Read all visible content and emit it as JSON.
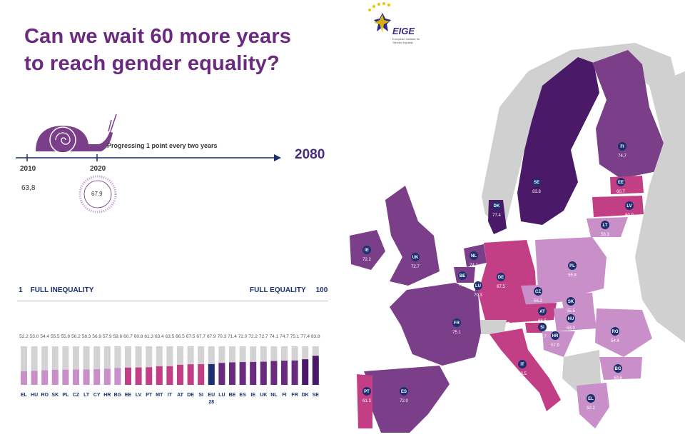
{
  "header": {
    "title_line1": "Can we wait 60 more years",
    "title_line2": "to reach gender equality?",
    "logo_text": "EIGE",
    "logo_subtext": "European Institute for Gender Equality"
  },
  "timeline": {
    "start_year": "2010",
    "start_value": "63,8",
    "current_year": "2020",
    "current_value": "67.9",
    "progress_text": "Progressing 1 point every two years",
    "target_year": "2080"
  },
  "scale": {
    "min_value": "1",
    "min_label": "FULL INEQUALITY",
    "max_label": "FULL EQUALITY",
    "max_value": "100"
  },
  "colors": {
    "title": "#6a2a7e",
    "eu_bar": "#1c2f6e",
    "bar_track": "#d3d3d3",
    "low": "#c98fc9",
    "mid_low": "#b061b6",
    "mid": "#c23f85",
    "high": "#6a2a7e",
    "top": "#4a1a68"
  },
  "chart_data": {
    "type": "bar",
    "categories": [
      "EL",
      "HU",
      "RO",
      "SK",
      "PL",
      "CZ",
      "LT",
      "CY",
      "HR",
      "BG",
      "EE",
      "LV",
      "PT",
      "MT",
      "IT",
      "AT",
      "DE",
      "SI",
      "EU 28",
      "LU",
      "BE",
      "ES",
      "IE",
      "UK",
      "NL",
      "FI",
      "FR",
      "DK",
      "SE"
    ],
    "values": [
      52.2,
      53.0,
      54.4,
      55.5,
      55.8,
      56.2,
      56.3,
      56.9,
      57.9,
      59.6,
      60.7,
      60.8,
      61.3,
      63.4,
      63.5,
      66.5,
      67.5,
      67.7,
      67.9,
      70.3,
      71.4,
      72.0,
      72.2,
      72.7,
      74.1,
      74.7,
      75.1,
      77.4,
      83.8
    ],
    "ylim": [
      0,
      100
    ]
  },
  "map_labels": [
    {
      "code": "SE",
      "value": "83.8"
    },
    {
      "code": "FI",
      "value": "74.7"
    },
    {
      "code": "EE",
      "value": "60.7"
    },
    {
      "code": "LV",
      "value": "60.8"
    },
    {
      "code": "LT",
      "value": "56.3"
    },
    {
      "code": "DK",
      "value": "77.4"
    },
    {
      "code": "IE",
      "value": "72.2"
    },
    {
      "code": "UK",
      "value": "72.7"
    },
    {
      "code": "NL",
      "value": "74.1"
    },
    {
      "code": "BE",
      "value": "71.4"
    },
    {
      "code": "LU",
      "value": "70.3"
    },
    {
      "code": "DE",
      "value": "67.5"
    },
    {
      "code": "PL",
      "value": "55.8"
    },
    {
      "code": "CZ",
      "value": "56.2"
    },
    {
      "code": "SK",
      "value": "55.5"
    },
    {
      "code": "AT",
      "value": "66.5"
    },
    {
      "code": "HU",
      "value": "53.0"
    },
    {
      "code": "SI",
      "value": "67.7"
    },
    {
      "code": "HR",
      "value": "57.9"
    },
    {
      "code": "FR",
      "value": "75.1"
    },
    {
      "code": "RO",
      "value": "54.4"
    },
    {
      "code": "BG",
      "value": "59.6"
    },
    {
      "code": "IT",
      "value": "63.5"
    },
    {
      "code": "PT",
      "value": "61.3"
    },
    {
      "code": "ES",
      "value": "72.0"
    },
    {
      "code": "EL",
      "value": "52.2"
    }
  ]
}
